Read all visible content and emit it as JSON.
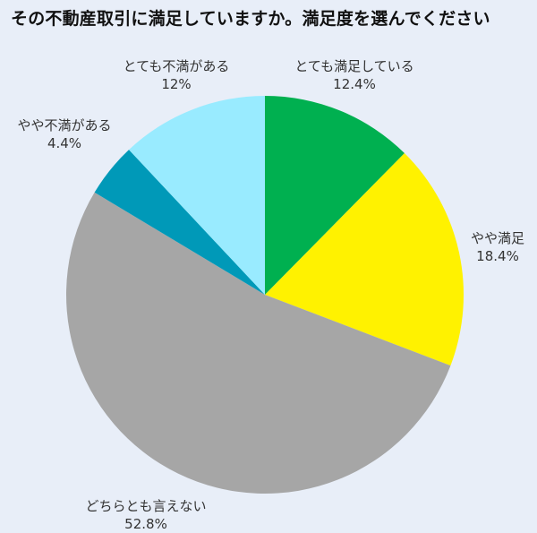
{
  "chart_data": {
    "type": "pie",
    "title": "その不動産取引に満足していますか。満足度を選んでください",
    "start_angle_deg": 0,
    "direction": "clockwise",
    "slices": [
      {
        "label": "とても満足している",
        "value": 12.4,
        "display": "12.4%",
        "color": "#00b050"
      },
      {
        "label": "やや満足",
        "value": 18.4,
        "display": "18.4%",
        "color": "#fff200"
      },
      {
        "label": "どちらとも言えない",
        "value": 52.8,
        "display": "52.8%",
        "color": "#a6a6a6"
      },
      {
        "label": "やや不満がある",
        "value": 4.4,
        "display": "4.4%",
        "color": "#0099b8"
      },
      {
        "label": "とても不満がある",
        "value": 12,
        "display": "12%",
        "color": "#99ebff"
      }
    ],
    "legend": "none (direct labels)"
  }
}
